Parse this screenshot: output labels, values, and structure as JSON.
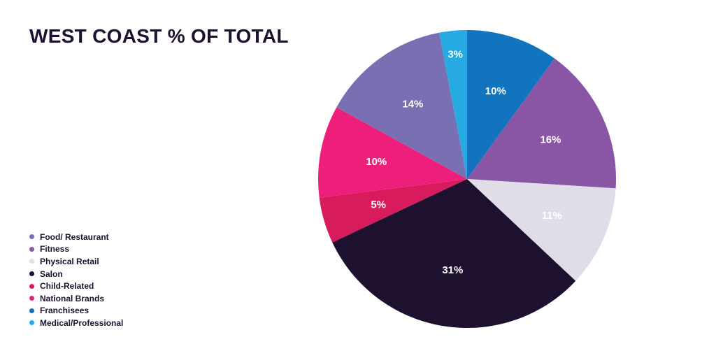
{
  "chart_data": {
    "type": "pie",
    "title": "WEST COAST % OF TOTAL",
    "slices": [
      {
        "name": "Franchisees",
        "value": 10,
        "label": "10%",
        "color": "#1273be"
      },
      {
        "name": "Fitness",
        "value": 16,
        "label": "16%",
        "color": "#8a55a4"
      },
      {
        "name": "Physical Retail",
        "value": 11,
        "label": "11%",
        "color": "#e0dde9"
      },
      {
        "name": "Salon",
        "value": 31,
        "label": "31%",
        "color": "#1e1130"
      },
      {
        "name": "Child-Related",
        "value": 5,
        "label": "5%",
        "color": "#d81b5c"
      },
      {
        "name": "National Brands",
        "value": 10,
        "label": "10%",
        "color": "#ed1f7a"
      },
      {
        "name": "Food/ Restaurant",
        "value": 14,
        "label": "14%",
        "color": "#7870b2"
      },
      {
        "name": "Medical/Professional",
        "value": 3,
        "label": "3%",
        "color": "#27a9e1"
      }
    ],
    "legend": {
      "placement": "bottom-left",
      "items": [
        {
          "name": "Food/ Restaurant",
          "color": "#7870b2"
        },
        {
          "name": "Fitness",
          "color": "#8a55a4"
        },
        {
          "name": "Physical Retail",
          "color": "#e0dde9"
        },
        {
          "name": "Salon",
          "color": "#1e1130"
        },
        {
          "name": "Child-Related",
          "color": "#d81b5c"
        },
        {
          "name": "National Brands",
          "color": "#ed1f7a"
        },
        {
          "name": "Franchisees",
          "color": "#1273be"
        },
        {
          "name": "Medical/Professional",
          "color": "#27a9e1"
        }
      ]
    }
  }
}
